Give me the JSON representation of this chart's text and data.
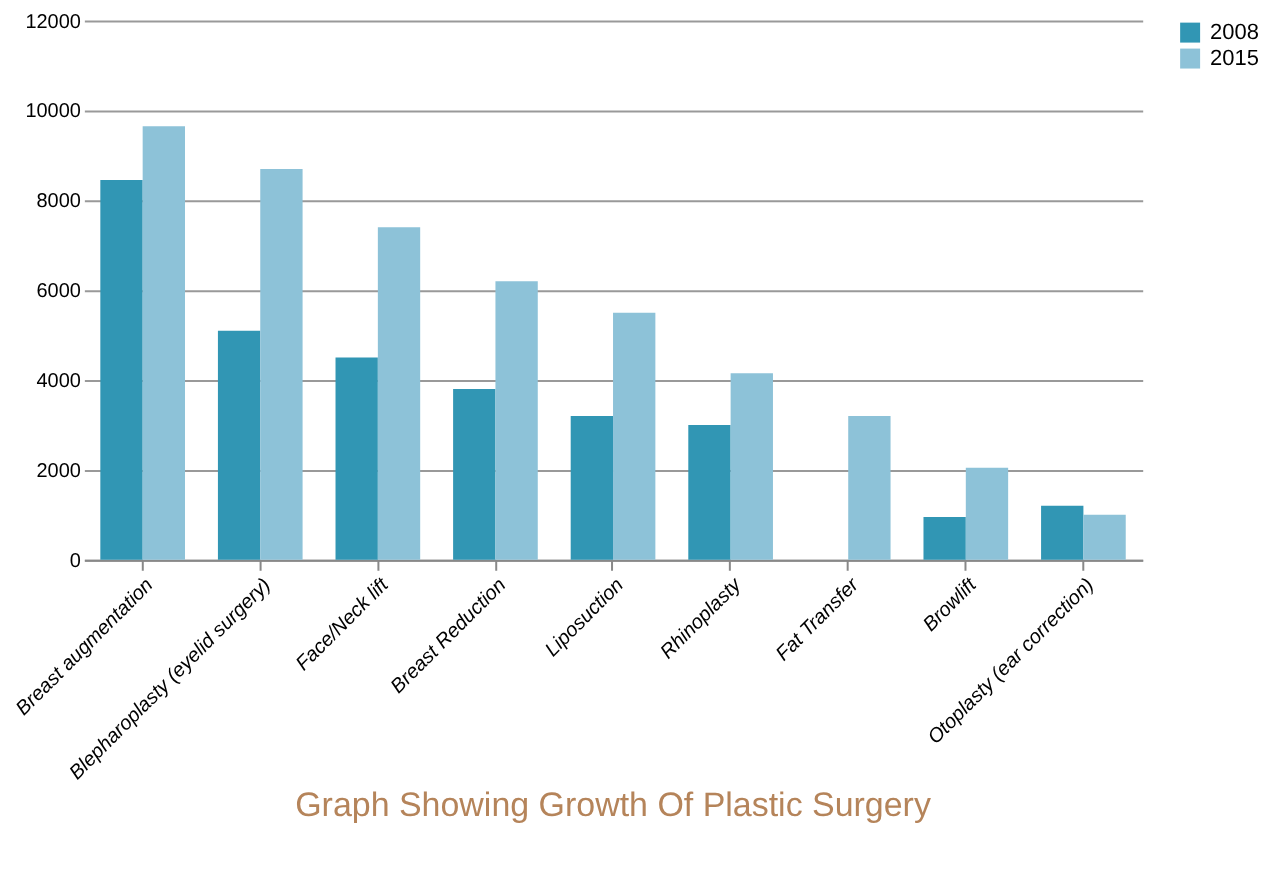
{
  "chart_data": {
    "type": "bar",
    "title": "Graph Showing Growth Of Plastic Surgery",
    "categories": [
      "Breast augmentation",
      "Blepharoplasty (eyelid surgery)",
      "Face/Neck lift",
      "Breast Reduction",
      "Liposuction",
      "Rhinoplasty",
      "Fat Transfer",
      "Browlift",
      "Otoplasty (ear correction)"
    ],
    "series": [
      {
        "name": "2008",
        "color": "#3196b4",
        "values": [
          8450,
          5100,
          4500,
          3800,
          3200,
          3000,
          null,
          950,
          1200
        ]
      },
      {
        "name": "2015",
        "color": "#8dc2d8",
        "values": [
          9650,
          8700,
          7400,
          6200,
          5500,
          4150,
          3200,
          2050,
          1000
        ]
      }
    ],
    "ylim": [
      0,
      12000
    ],
    "yticks": [
      0,
      2000,
      4000,
      6000,
      8000,
      10000,
      12000
    ],
    "grid": "y",
    "legend": "right"
  }
}
